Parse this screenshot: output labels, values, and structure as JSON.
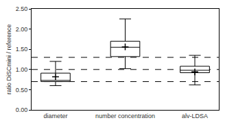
{
  "chart_data": {
    "type": "box",
    "y_label": "ratio DiSCmini / reference",
    "categories": [
      "diameter",
      "number concentration",
      "alv-LDSA"
    ],
    "whisker_low": [
      0.6,
      1.02,
      0.62
    ],
    "q1": [
      0.7,
      1.32,
      0.92
    ],
    "median": [
      0.73,
      1.55,
      0.98
    ],
    "q3": [
      0.91,
      1.7,
      1.08
    ],
    "whisker_high": [
      1.2,
      2.25,
      1.35
    ],
    "mean": [
      0.82,
      1.56,
      0.94
    ],
    "reference_lines": [
      0.7,
      1.0,
      1.3
    ],
    "color": "#000000",
    "ylim": [
      0,
      2.5
    ],
    "yticks": [
      {
        "value": 0,
        "label": "0.00"
      },
      {
        "value": 0.5,
        "label": "0.50"
      },
      {
        "value": 1.0,
        "label": "1.00"
      },
      {
        "value": 1.5,
        "label": "1.50"
      },
      {
        "value": 2.0,
        "label": "2.00"
      },
      {
        "value": 2.5,
        "label": "2.50"
      }
    ],
    "grid": false
  }
}
